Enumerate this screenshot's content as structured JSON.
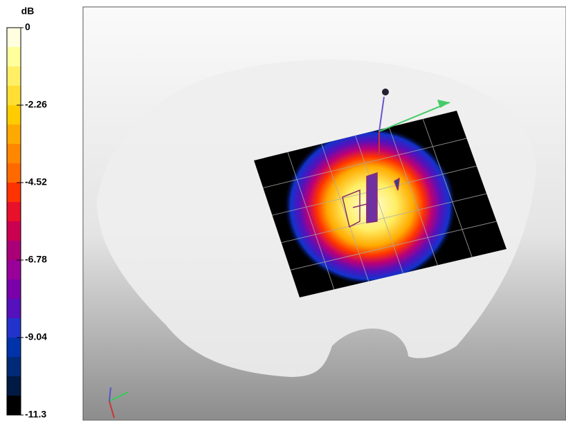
{
  "colorbar": {
    "unit": "dB",
    "ticks": [
      0,
      -2.26,
      -4.52,
      -6.78,
      -9.04,
      -11.3
    ],
    "colors": [
      "#ffffe0",
      "#ffff9c",
      "#ffef66",
      "#ffdf33",
      "#ffcc00",
      "#ffaa00",
      "#ff8800",
      "#ff6a00",
      "#ff3300",
      "#e8102a",
      "#cc0050",
      "#aa0077",
      "#990099",
      "#7a00aa",
      "#5511bb",
      "#2233cc",
      "#0033aa",
      "#002a77",
      "#001a44",
      "#000000"
    ]
  }
}
